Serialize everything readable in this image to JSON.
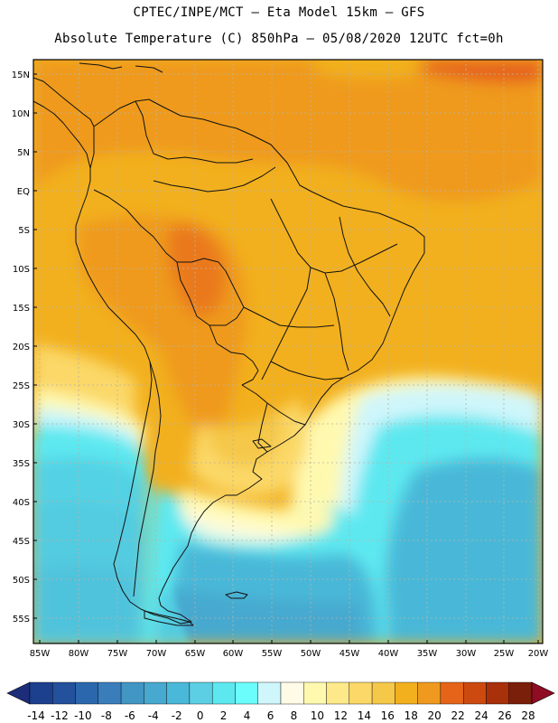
{
  "title": {
    "line1": "CPTEC/INPE/MCT –  Eta Model 15km – GFS",
    "line2": "Absolute Temperature (C) 850hPa – 05/08/2020 12UTC fct=0h"
  },
  "map": {
    "lat_labels": [
      "15N",
      "10N",
      "5N",
      "EQ",
      "5S",
      "10S",
      "15S",
      "20S",
      "25S",
      "30S",
      "35S",
      "40S",
      "45S",
      "50S",
      "55S"
    ],
    "lon_labels": [
      "85W",
      "80W",
      "75W",
      "70W",
      "65W",
      "60W",
      "55W",
      "50W",
      "45W",
      "40W",
      "35W",
      "30W",
      "25W",
      "20W"
    ],
    "lat_range": [
      17.5,
      -57.5
    ],
    "lon_range": [
      -85.5,
      -20.5
    ]
  },
  "colorbar": {
    "labels": [
      "-14",
      "-12",
      "-10",
      "-8",
      "-6",
      "-4",
      "-2",
      "0",
      "2",
      "4",
      "6",
      "8",
      "10",
      "12",
      "14",
      "16",
      "18",
      "20",
      "22",
      "24",
      "26",
      "28"
    ],
    "colors": [
      "#1c3f8e",
      "#23519c",
      "#2b67ac",
      "#3a7dbb",
      "#4296c4",
      "#47a9cf",
      "#4ab8d8",
      "#5ccfe4",
      "#5de8f0",
      "#6bfcfc",
      "#cff6fb",
      "#fffbe6",
      "#fff9b0",
      "#fde98a",
      "#fbd868",
      "#f5c84a",
      "#f2b01e",
      "#ef9a1e",
      "#e6641a",
      "#cc4a10",
      "#a8300a",
      "#7a1f0a"
    ],
    "low_color": "#1c2d7a",
    "high_color": "#8f0c22"
  }
}
